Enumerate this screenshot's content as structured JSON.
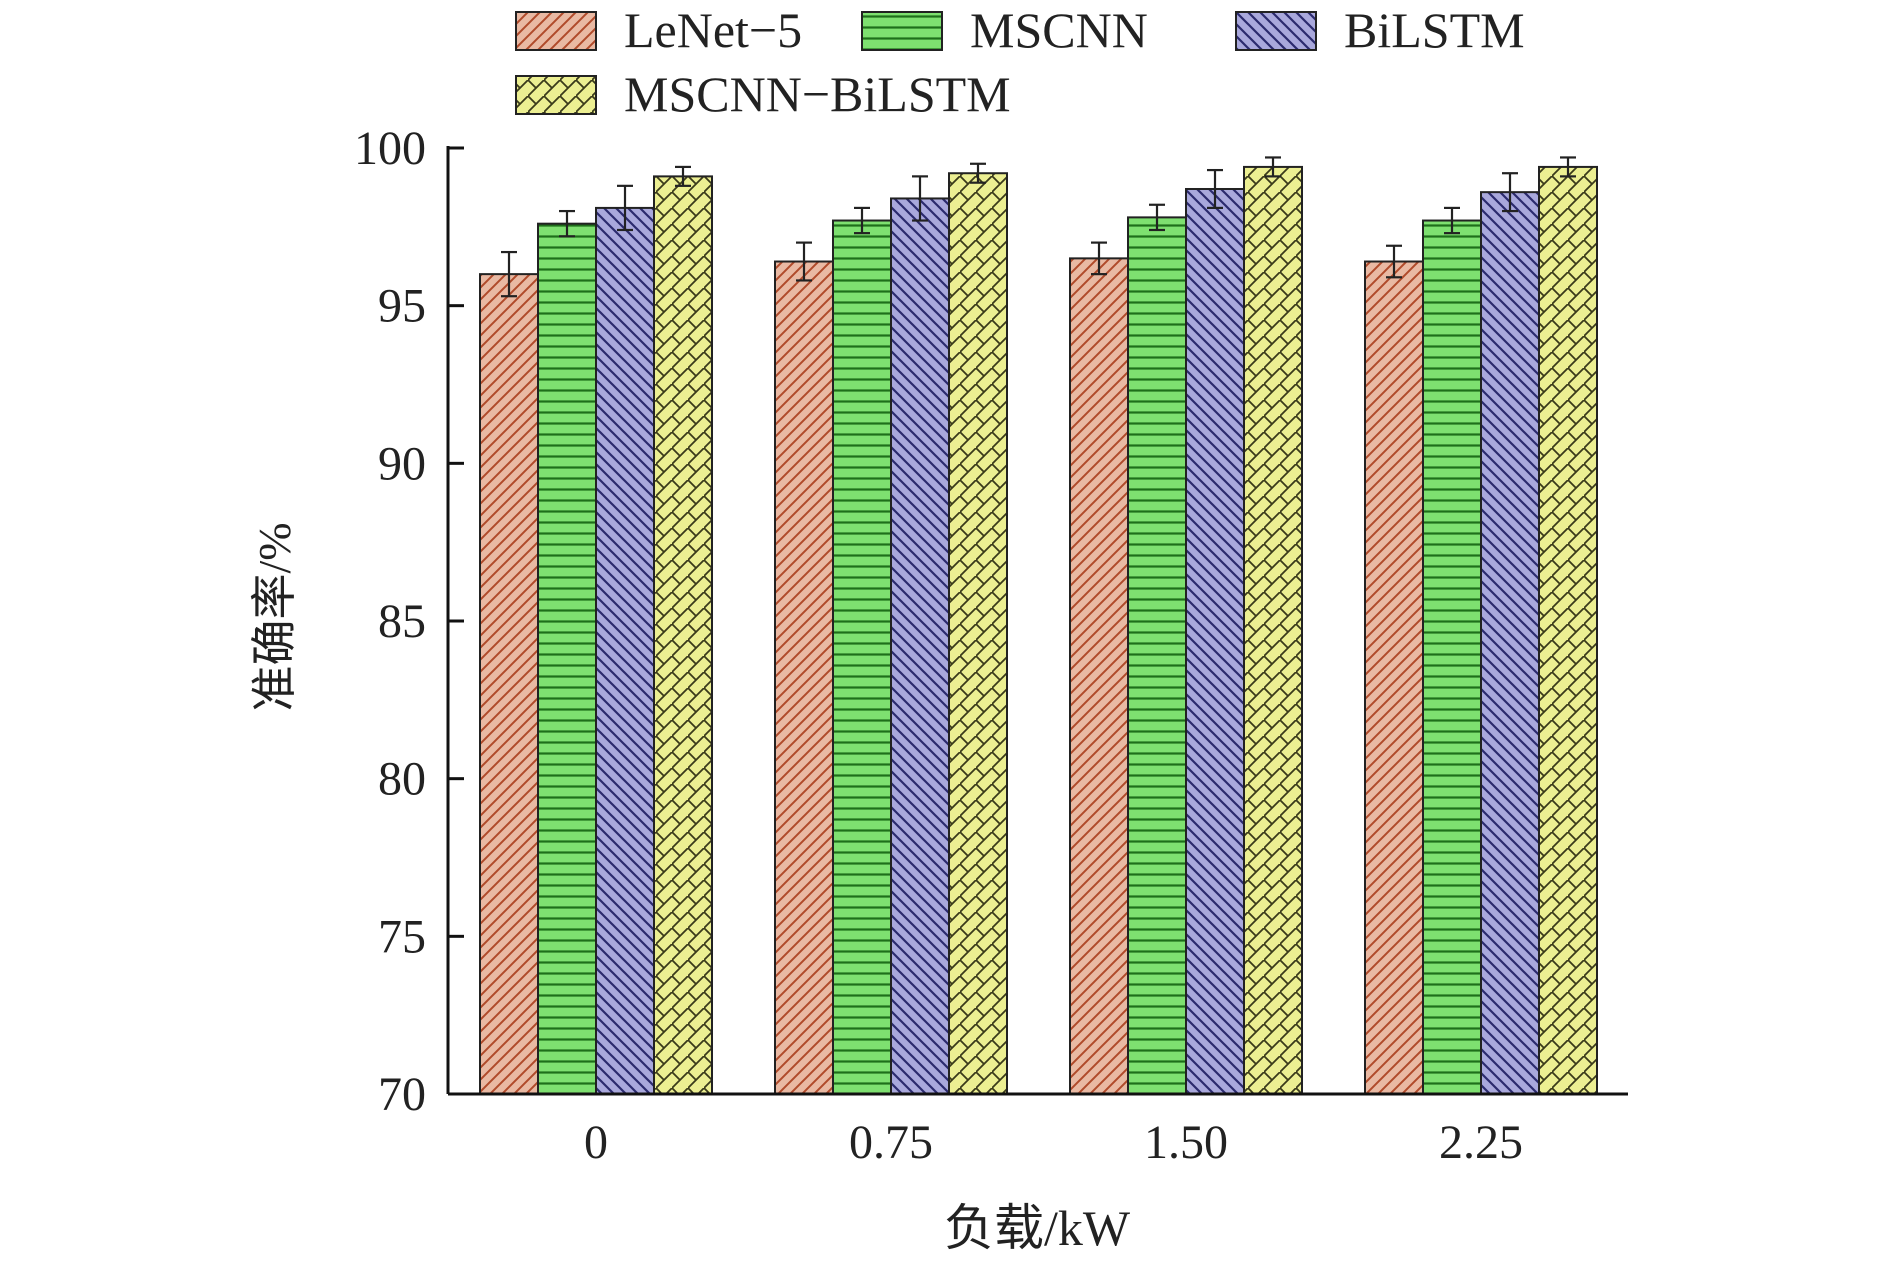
{
  "chart_data": {
    "type": "bar",
    "title": "",
    "xlabel": "负载/kW",
    "ylabel": "准确率/%",
    "categories": [
      "0",
      "0.75",
      "1.50",
      "2.25"
    ],
    "ylim": [
      70,
      100
    ],
    "yticks": [
      "70",
      "75",
      "80",
      "85",
      "90",
      "95",
      "100"
    ],
    "grid": false,
    "legend_position": "top",
    "series": [
      {
        "name": "LeNet−5",
        "values": [
          96.0,
          96.4,
          96.5,
          96.4
        ],
        "errors": [
          0.7,
          0.6,
          0.5,
          0.5
        ],
        "color": "#e9b9a3",
        "pattern": "diagonal-right"
      },
      {
        "name": "MSCNN",
        "values": [
          97.6,
          97.7,
          97.8,
          97.7
        ],
        "errors": [
          0.4,
          0.4,
          0.4,
          0.4
        ],
        "color": "#7ee070",
        "pattern": "horizontal"
      },
      {
        "name": "BiLSTM",
        "values": [
          98.1,
          98.4,
          98.7,
          98.6
        ],
        "errors": [
          0.7,
          0.7,
          0.6,
          0.6
        ],
        "color": "#a9a8dc",
        "pattern": "diagonal-left"
      },
      {
        "name": "MSCNN−BiLSTM",
        "values": [
          99.1,
          99.2,
          99.4,
          99.4
        ],
        "errors": [
          0.3,
          0.3,
          0.3,
          0.3
        ],
        "color": "#ecef92",
        "pattern": "crosshatch"
      }
    ]
  }
}
